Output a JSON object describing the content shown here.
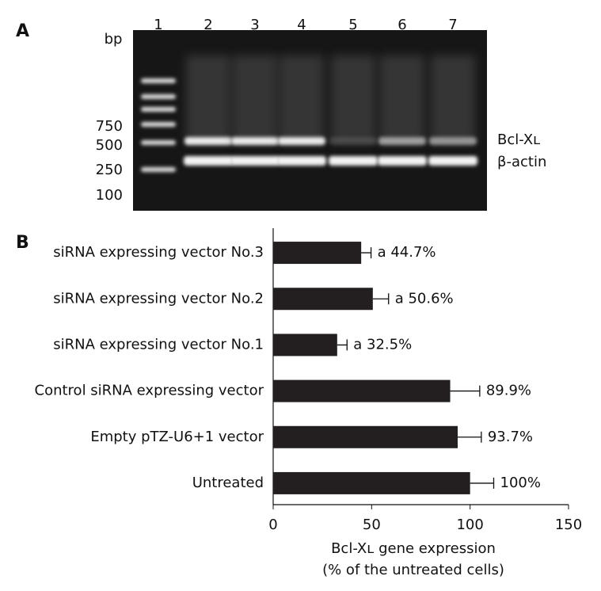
{
  "panel_a": {
    "label": "A",
    "lanes": [
      "1",
      "2",
      "3",
      "4",
      "5",
      "6",
      "7"
    ],
    "unit": "bp",
    "ladder": [
      "750",
      "500",
      "250",
      "100"
    ],
    "bands": [
      "Bcl-Xʟ",
      "β-actin"
    ]
  },
  "chart_data": {
    "type": "barh",
    "panel_label": "B",
    "categories": [
      "siRNA expressing vector No.3",
      "siRNA expressing vector No.2",
      "siRNA expressing vector No.1",
      "Control siRNA expressing vector",
      "Empty pTZ-U6+1 vector",
      "Untreated"
    ],
    "values": [
      44.7,
      50.6,
      32.5,
      89.9,
      93.7,
      100
    ],
    "errors": [
      5,
      8,
      5,
      15,
      12,
      12
    ],
    "value_labels": [
      "a 44.7%",
      "a 50.6%",
      "a 32.5%",
      "89.9%",
      "93.7%",
      "100%"
    ],
    "color": "#231f20",
    "xlim": [
      0,
      150
    ],
    "xticks": [
      0,
      50,
      100,
      150
    ],
    "x_label": [
      "Bcl-Xʟ gene expression",
      "(% of the untreated cells)"
    ]
  }
}
